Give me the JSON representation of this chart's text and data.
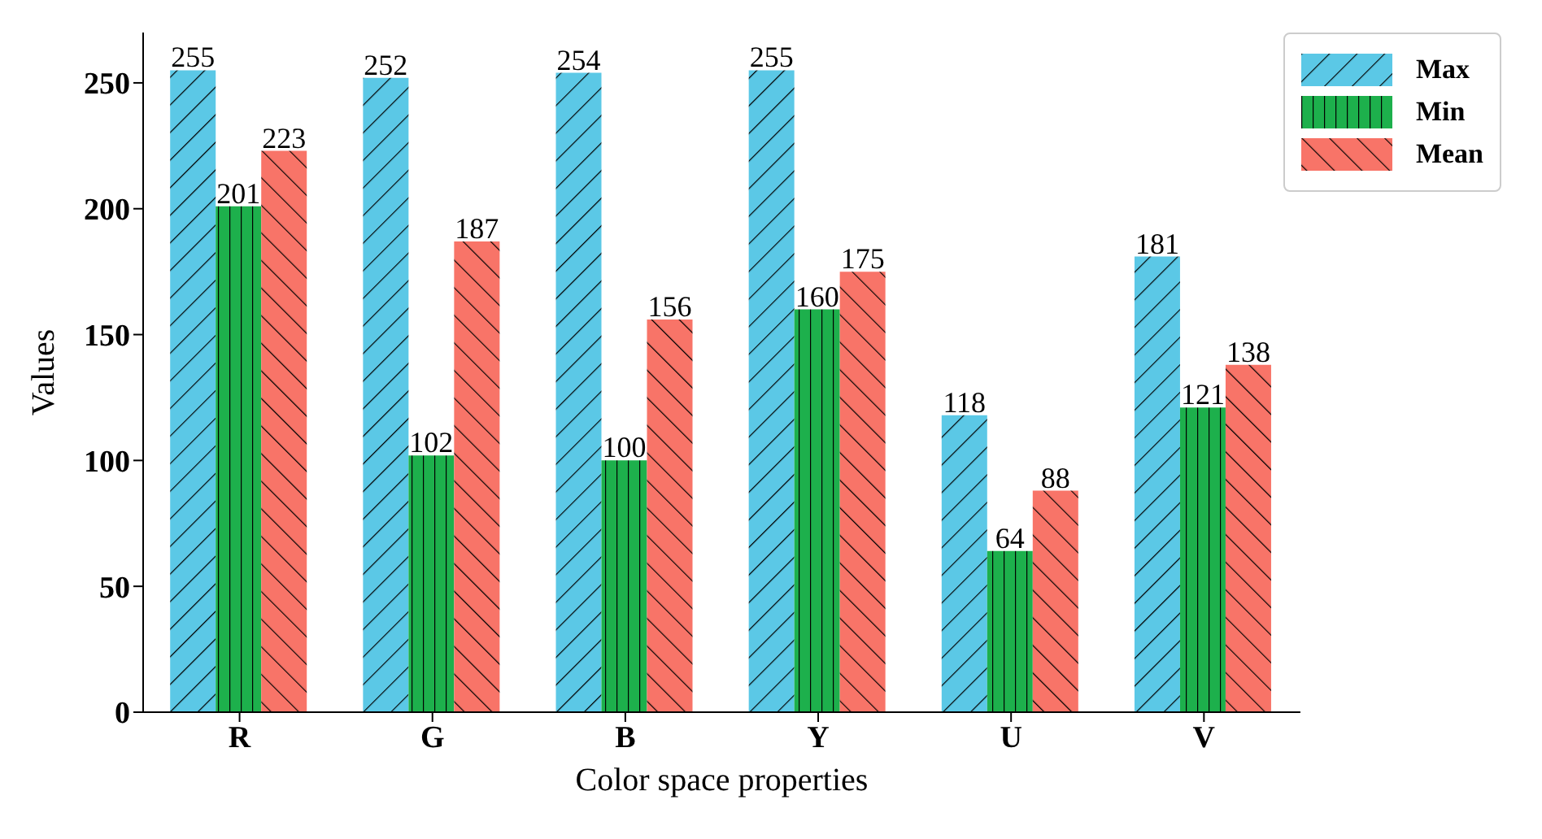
{
  "chart_data": {
    "type": "bar",
    "xlabel": "Color space properties",
    "ylabel": "Values",
    "categories": [
      "R",
      "G",
      "B",
      "Y",
      "U",
      "V"
    ],
    "series": [
      {
        "name": "Max",
        "color": "#5bc8e6",
        "values": [
          255,
          252,
          254,
          255,
          118,
          181
        ]
      },
      {
        "name": "Min",
        "color": "#1db04c",
        "values": [
          201,
          102,
          100,
          160,
          64,
          121
        ]
      },
      {
        "name": "Mean",
        "color": "#f87468",
        "values": [
          223,
          187,
          156,
          175,
          88,
          138
        ]
      }
    ],
    "ylim": [
      0,
      270
    ],
    "yticks": [
      0,
      50,
      100,
      150,
      200,
      250
    ],
    "grid": false,
    "legend": "top right",
    "data_labels": true
  }
}
